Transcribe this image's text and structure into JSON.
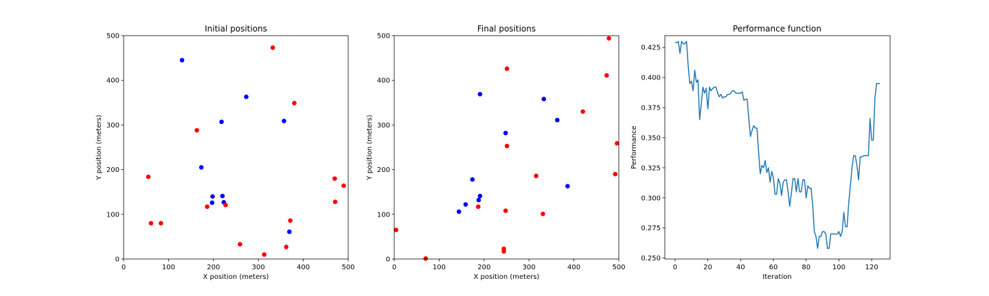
{
  "chart_data": [
    {
      "type": "scatter",
      "title": "Initial positions",
      "xlabel": "X position (meters)",
      "ylabel": "Y position (meters)",
      "xlim": [
        0,
        500
      ],
      "ylim": [
        0,
        500
      ],
      "xticks": [
        0,
        100,
        200,
        300,
        400,
        500
      ],
      "yticks": [
        0,
        100,
        200,
        300,
        400,
        500
      ],
      "grid": false,
      "series": [
        {
          "color": "#0000ff",
          "points": [
            [
              130,
              445
            ],
            [
              273,
              363
            ],
            [
              218,
              307
            ],
            [
              357,
              309
            ],
            [
              173,
              205
            ],
            [
              198,
              140
            ],
            [
              197,
              126
            ],
            [
              220,
              141
            ],
            [
              223,
              127
            ],
            [
              369,
              61
            ]
          ]
        },
        {
          "color": "#ff0000",
          "points": [
            [
              332,
              473
            ],
            [
              380,
              349
            ],
            [
              163,
              288
            ],
            [
              55,
              184
            ],
            [
              61,
              80
            ],
            [
              83,
              80
            ],
            [
              186,
              117
            ],
            [
              227,
              121
            ],
            [
              470,
              180
            ],
            [
              490,
              164
            ],
            [
              471,
              128
            ],
            [
              371,
              86
            ],
            [
              259,
              33
            ],
            [
              362,
              27
            ],
            [
              313,
              10
            ]
          ]
        }
      ]
    },
    {
      "type": "scatter",
      "title": "Final positions",
      "xlabel": "X position (meters)",
      "ylabel": "Y position (meters)",
      "xlim": [
        0,
        500
      ],
      "ylim": [
        0,
        500
      ],
      "xticks": [
        0,
        100,
        200,
        300,
        400,
        500
      ],
      "yticks": [
        0,
        100,
        200,
        300,
        400,
        500
      ],
      "grid": false,
      "series": [
        {
          "color": "#0000ff",
          "points": [
            [
              191,
              369
            ],
            [
              333,
              358
            ],
            [
              363,
              311
            ],
            [
              248,
              282
            ],
            [
              174,
              178
            ],
            [
              386,
              163
            ],
            [
              191,
              141
            ],
            [
              188,
              132
            ],
            [
              159,
              122
            ],
            [
              144,
              106
            ]
          ]
        },
        {
          "color": "#ff0000",
          "points": [
            [
              478,
              494
            ],
            [
              251,
              426
            ],
            [
              473,
              411
            ],
            [
              420,
              330
            ],
            [
              496,
              259
            ],
            [
              251,
              253
            ],
            [
              316,
              186
            ],
            [
              492,
              190
            ],
            [
              187,
              117
            ],
            [
              248,
              108
            ],
            [
              331,
              101
            ],
            [
              4,
              65
            ],
            [
              244,
              23
            ],
            [
              244,
              17
            ],
            [
              70,
              1
            ]
          ]
        }
      ]
    },
    {
      "type": "line",
      "title": "Performance function",
      "xlabel": "Iteration",
      "ylabel": "Performance",
      "xlim": [
        -6.25,
        131.25
      ],
      "ylim": [
        0.2492,
        0.4348
      ],
      "xticks": [
        0,
        20,
        40,
        60,
        80,
        100,
        120
      ],
      "yticks": [
        0.25,
        0.275,
        0.3,
        0.325,
        0.35,
        0.375,
        0.4,
        0.425
      ],
      "yticklabels": [
        "0.250",
        "0.275",
        "0.300",
        "0.325",
        "0.350",
        "0.375",
        "0.400",
        "0.425"
      ],
      "grid": false,
      "series": [
        {
          "color": "#1f77b4",
          "x": [
            0,
            1,
            2,
            3,
            4,
            5,
            6,
            7,
            8,
            9,
            10,
            11,
            12,
            13,
            14,
            15,
            16,
            17,
            18,
            19,
            20,
            21,
            22,
            23,
            24,
            25,
            26,
            27,
            28,
            29,
            30,
            31,
            32,
            33,
            34,
            35,
            36,
            37,
            38,
            39,
            40,
            41,
            42,
            43,
            44,
            45,
            46,
            47,
            48,
            49,
            50,
            51,
            52,
            53,
            54,
            55,
            56,
            57,
            58,
            59,
            60,
            61,
            62,
            63,
            64,
            65,
            66,
            67,
            68,
            69,
            70,
            71,
            72,
            73,
            74,
            75,
            76,
            77,
            78,
            79,
            80,
            81,
            82,
            83,
            84,
            85,
            86,
            87,
            88,
            89,
            90,
            91,
            92,
            93,
            94,
            95,
            96,
            97,
            98,
            99,
            100,
            101,
            102,
            103,
            104,
            105,
            106,
            107,
            108,
            109,
            110,
            111,
            112,
            113,
            114,
            115,
            116,
            117,
            118,
            119,
            120,
            121,
            122,
            123,
            124,
            125
          ],
          "y": [
            0.429,
            0.429,
            0.43,
            0.42,
            0.43,
            0.428,
            0.428,
            0.43,
            0.41,
            0.395,
            0.397,
            0.389,
            0.406,
            0.396,
            0.398,
            0.365,
            0.378,
            0.392,
            0.387,
            0.391,
            0.374,
            0.392,
            0.389,
            0.391,
            0.392,
            0.392,
            0.387,
            0.384,
            0.386,
            0.383,
            0.384,
            0.384,
            0.386,
            0.386,
            0.387,
            0.389,
            0.389,
            0.387,
            0.387,
            0.387,
            0.387,
            0.388,
            0.381,
            0.382,
            0.382,
            0.366,
            0.351,
            0.356,
            0.36,
            0.358,
            0.358,
            0.338,
            0.32,
            0.327,
            0.325,
            0.331,
            0.321,
            0.325,
            0.313,
            0.322,
            0.317,
            0.303,
            0.303,
            0.316,
            0.312,
            0.302,
            0.313,
            0.315,
            0.315,
            0.305,
            0.293,
            0.304,
            0.316,
            0.316,
            0.305,
            0.316,
            0.305,
            0.305,
            0.315,
            0.315,
            0.3,
            0.31,
            0.308,
            0.308,
            0.294,
            0.272,
            0.268,
            0.258,
            0.268,
            0.268,
            0.272,
            0.272,
            0.27,
            0.258,
            0.258,
            0.27,
            0.27,
            0.27,
            0.27,
            0.27,
            0.272,
            0.268,
            0.272,
            0.288,
            0.276,
            0.276,
            0.296,
            0.31,
            0.325,
            0.335,
            0.335,
            0.327,
            0.315,
            0.334,
            0.334,
            0.335,
            0.335,
            0.335,
            0.335,
            0.366,
            0.348,
            0.348,
            0.383,
            0.395,
            0.395,
            0.395
          ]
        }
      ]
    }
  ]
}
